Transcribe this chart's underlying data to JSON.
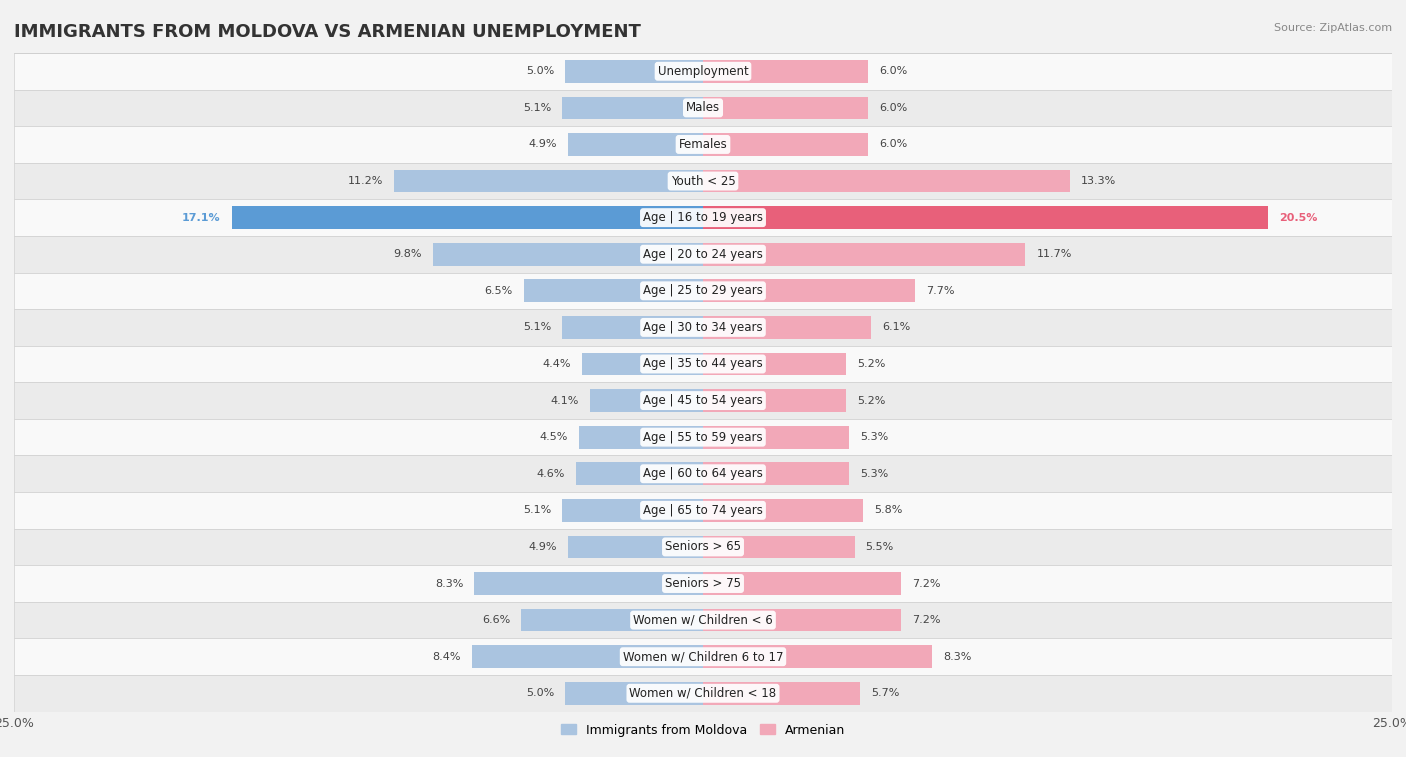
{
  "title": "IMMIGRANTS FROM MOLDOVA VS ARMENIAN UNEMPLOYMENT",
  "source": "Source: ZipAtlas.com",
  "categories": [
    "Unemployment",
    "Males",
    "Females",
    "Youth < 25",
    "Age | 16 to 19 years",
    "Age | 20 to 24 years",
    "Age | 25 to 29 years",
    "Age | 30 to 34 years",
    "Age | 35 to 44 years",
    "Age | 45 to 54 years",
    "Age | 55 to 59 years",
    "Age | 60 to 64 years",
    "Age | 65 to 74 years",
    "Seniors > 65",
    "Seniors > 75",
    "Women w/ Children < 6",
    "Women w/ Children 6 to 17",
    "Women w/ Children < 18"
  ],
  "moldova_values": [
    5.0,
    5.1,
    4.9,
    11.2,
    17.1,
    9.8,
    6.5,
    5.1,
    4.4,
    4.1,
    4.5,
    4.6,
    5.1,
    4.9,
    8.3,
    6.6,
    8.4,
    5.0
  ],
  "armenian_values": [
    6.0,
    6.0,
    6.0,
    13.3,
    20.5,
    11.7,
    7.7,
    6.1,
    5.2,
    5.2,
    5.3,
    5.3,
    5.8,
    5.5,
    7.2,
    7.2,
    8.3,
    5.7
  ],
  "moldova_color": "#aac4e0",
  "armenian_color": "#f2a8b8",
  "moldova_highlight_color": "#5b9bd5",
  "armenian_highlight_color": "#e8607a",
  "bg_color": "#f2f2f2",
  "row_light": "#f9f9f9",
  "row_dark": "#ebebeb",
  "axis_max": 25.0,
  "bar_height": 0.62,
  "legend_moldova": "Immigrants from Moldova",
  "legend_armenian": "Armenian",
  "title_fontsize": 13,
  "label_fontsize": 8.5,
  "value_fontsize": 8.0
}
